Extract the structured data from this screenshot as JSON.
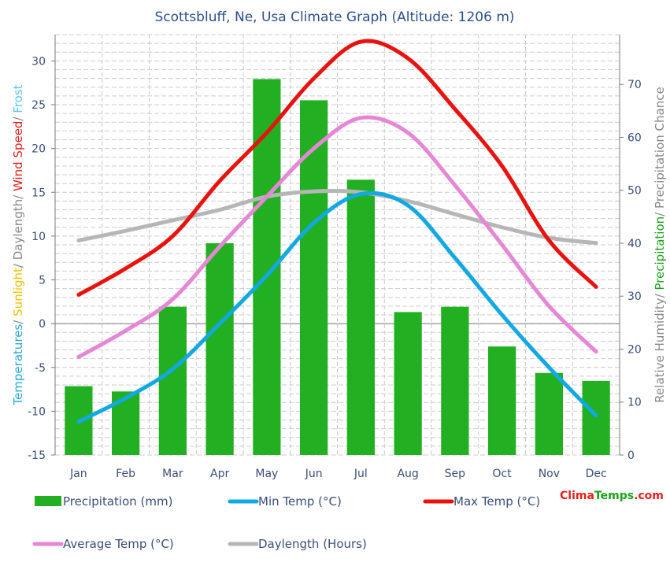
{
  "chart_data": {
    "type": "bar",
    "title": "Scottsbluff, Ne, Usa Climate Graph (Altitude: 1206 m)",
    "categories": [
      "Jan",
      "Feb",
      "Mar",
      "Apr",
      "May",
      "Jun",
      "Jul",
      "Aug",
      "Sep",
      "Oct",
      "Nov",
      "Dec"
    ],
    "y_left": {
      "range": [
        -15,
        33
      ],
      "ticks": [
        30,
        25,
        20,
        15,
        10,
        5,
        0,
        -5,
        -10,
        -15
      ],
      "label_parts": [
        {
          "text": "Temperatures",
          "color": "#2aa8d8"
        },
        {
          "text": "/ ",
          "color": "#888888"
        },
        {
          "text": "Sunlight",
          "color": "#f2c200"
        },
        {
          "text": "/ Daylength/ ",
          "color": "#888888"
        },
        {
          "text": "Wind Speed",
          "color": "#e8201c"
        },
        {
          "text": "/ ",
          "color": "#888888"
        },
        {
          "text": "Frost",
          "color": "#5ec8e8"
        }
      ]
    },
    "y_right": {
      "range": [
        0,
        79.4
      ],
      "ticks": [
        70,
        60,
        50,
        40,
        30,
        20,
        10,
        0
      ],
      "label_parts": [
        {
          "text": "Relative Humidity/ ",
          "color": "#888888"
        },
        {
          "text": "Precipitation",
          "color": "#1aa21a"
        },
        {
          "text": "/ Precipitation Chance",
          "color": "#888888"
        }
      ]
    },
    "series": [
      {
        "name": "Precipitation (mm)",
        "kind": "bar",
        "axis": "right",
        "color": "#22b022",
        "values": [
          13,
          12,
          28,
          40,
          71,
          67,
          52,
          27,
          28,
          20.5,
          15.5,
          14
        ]
      },
      {
        "name": "Min Temp (°C)",
        "kind": "line",
        "axis": "left",
        "color": "#12a8e2",
        "values": [
          -11.2,
          -8.5,
          -5.2,
          0.0,
          5.5,
          11.5,
          14.8,
          13.5,
          7.5,
          1.0,
          -5.0,
          -10.5
        ]
      },
      {
        "name": "Max Temp (°C)",
        "kind": "line",
        "axis": "left",
        "color": "#e8120f",
        "values": [
          3.3,
          6.3,
          10.0,
          16.3,
          21.8,
          28.0,
          32.2,
          30.3,
          24.5,
          18.0,
          9.5,
          4.2
        ]
      },
      {
        "name": "Average Temp (°C)",
        "kind": "line",
        "axis": "left",
        "color": "#e686d6",
        "values": [
          -3.8,
          -0.8,
          2.8,
          8.8,
          14.5,
          20.0,
          23.5,
          21.8,
          15.8,
          9.0,
          2.0,
          -3.2
        ]
      },
      {
        "name": "Daylength (Hours)",
        "kind": "line",
        "axis": "left",
        "color": "#b6b6b6",
        "values": [
          9.5,
          10.6,
          11.8,
          13.0,
          14.5,
          15.1,
          15.0,
          14.0,
          12.5,
          11.0,
          9.8,
          9.2
        ]
      }
    ],
    "legend": [
      {
        "label": "Precipitation (mm)",
        "color": "#22b022",
        "marker": "bar"
      },
      {
        "label": "Min Temp (°C)",
        "color": "#12a8e2",
        "marker": "line"
      },
      {
        "label": "Max Temp (°C)",
        "color": "#e8120f",
        "marker": "line"
      },
      {
        "label": "Average Temp (°C)",
        "color": "#e686d6",
        "marker": "line"
      },
      {
        "label": "Daylength (Hours)",
        "color": "#b6b6b6",
        "marker": "line"
      }
    ],
    "legend_placement": "bottom",
    "grid": true
  },
  "brand": {
    "part1": "Clima",
    "part2": "Temps",
    "part3": ".com"
  }
}
